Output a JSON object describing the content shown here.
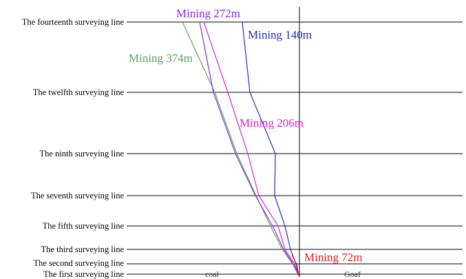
{
  "figure": {
    "survey_lines": [
      "The fourteenth surveying line",
      "The twelfth surveying line",
      "The ninth surveying line",
      "The seventh surveying line",
      "The fifth surveying line",
      "The third surveying line",
      "The second surveying line",
      "The first surveying line"
    ],
    "mining_labels": [
      {
        "text": "Mining 272m",
        "color": "#8b2be2"
      },
      {
        "text": "Mining 140m",
        "color": "#1f2fb8"
      },
      {
        "text": "Mining 374m",
        "color": "#5aa55a"
      },
      {
        "text": "Mining 206m",
        "color": "#e020c8"
      },
      {
        "text": "Mining 72m",
        "color": "#e02020"
      }
    ],
    "zones": {
      "coal": "coal",
      "goaf": "Goaf"
    }
  }
}
